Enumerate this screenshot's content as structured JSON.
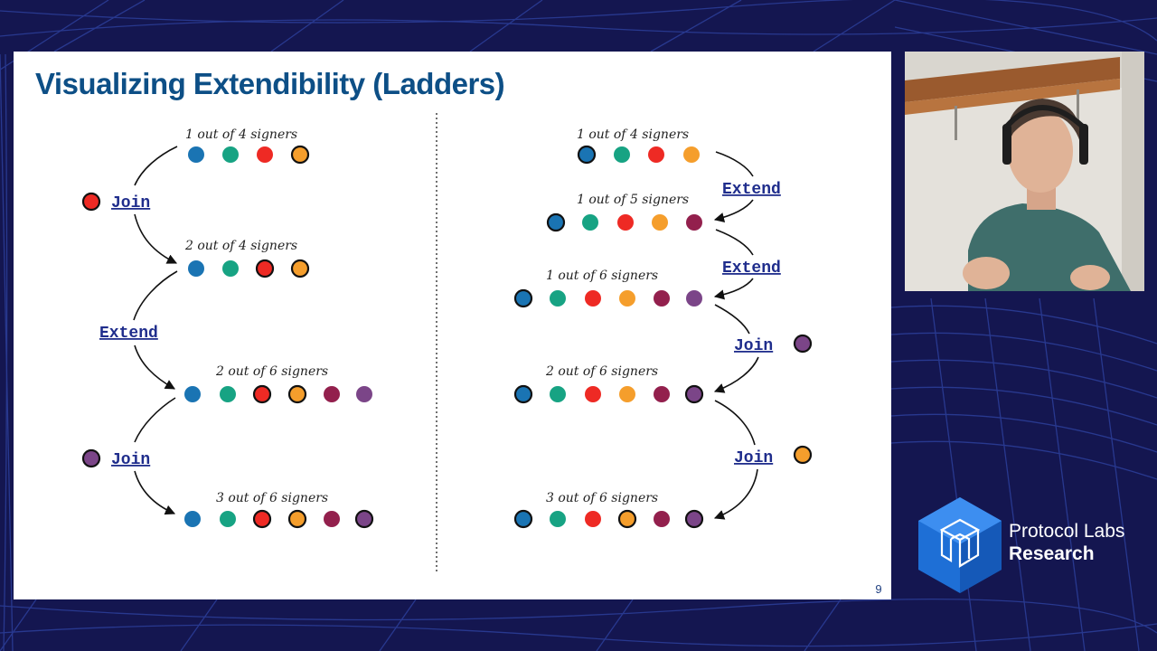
{
  "slide": {
    "title": "Visualizing Extendibility (Ladders)",
    "page_number": "9"
  },
  "colors": {
    "blue": "#1a74b3",
    "green": "#17a383",
    "red": "#ee2a24",
    "orange": "#f59e2c",
    "maroon": "#93204d",
    "purple": "#7b4588",
    "title": "#0d4f86",
    "op": "#1f2d8c"
  },
  "left_ladder": {
    "rows": [
      {
        "label": "1 out of 4 signers",
        "signers": [
          "blue",
          "green",
          "red",
          "orange"
        ],
        "highlighted": [
          3
        ]
      },
      {
        "label": "2 out of 4 signers",
        "signers": [
          "blue",
          "green",
          "red",
          "orange"
        ],
        "highlighted": [
          2,
          3
        ]
      },
      {
        "label": "2 out of 6 signers",
        "signers": [
          "blue",
          "green",
          "red",
          "orange",
          "maroon",
          "purple"
        ],
        "highlighted": [
          2,
          3
        ]
      },
      {
        "label": "3 out of 6 signers",
        "signers": [
          "blue",
          "green",
          "red",
          "orange",
          "maroon",
          "purple"
        ],
        "highlighted": [
          2,
          3,
          5
        ]
      }
    ],
    "operations": [
      {
        "label": "Join",
        "signer": "red"
      },
      {
        "label": "Extend"
      },
      {
        "label": "Join",
        "signer": "purple"
      }
    ]
  },
  "right_ladder": {
    "rows": [
      {
        "label": "1 out of 4 signers",
        "signers": [
          "blue",
          "green",
          "red",
          "orange"
        ],
        "highlighted": [
          0
        ]
      },
      {
        "label": "1 out of 5 signers",
        "signers": [
          "blue",
          "green",
          "red",
          "orange",
          "maroon"
        ],
        "highlighted": [
          0
        ]
      },
      {
        "label": "1 out of 6 signers",
        "signers": [
          "blue",
          "green",
          "red",
          "orange",
          "maroon",
          "purple"
        ],
        "highlighted": [
          0
        ]
      },
      {
        "label": "2 out of 6 signers",
        "signers": [
          "blue",
          "green",
          "red",
          "orange",
          "maroon",
          "purple"
        ],
        "highlighted": [
          0,
          5
        ]
      },
      {
        "label": "3 out of 6 signers",
        "signers": [
          "blue",
          "green",
          "red",
          "orange",
          "maroon",
          "purple"
        ],
        "highlighted": [
          0,
          3,
          5
        ]
      }
    ],
    "operations": [
      {
        "label": "Extend"
      },
      {
        "label": "Extend"
      },
      {
        "label": "Join",
        "signer": "purple"
      },
      {
        "label": "Join",
        "signer": "orange"
      }
    ]
  },
  "logo": {
    "line1": "Protocol Labs",
    "line2": "Research"
  }
}
